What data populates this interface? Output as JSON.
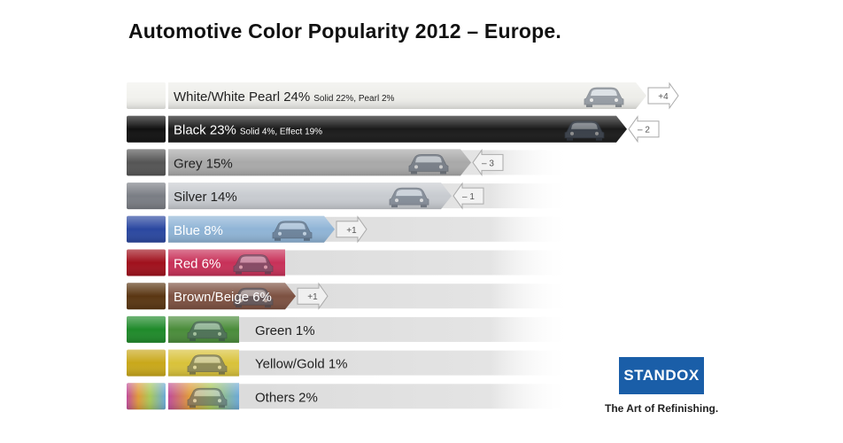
{
  "chart_data": {
    "type": "bar",
    "title": "Automotive Color Popularity 2012 – Europe.",
    "unit": "%",
    "series": [
      {
        "label": "White/White Pearl 24%",
        "detail": "Solid 22%, Pearl 2%",
        "value": 24,
        "change": "+4",
        "color": "#eeeeea",
        "swatch": "#f2f2ee",
        "text_color": "#222222"
      },
      {
        "label": "Black 23%",
        "detail": "Solid 4%, Effect 19%",
        "value": 23,
        "change": "– 2",
        "color": "#1a1a1a",
        "swatch": "#111111",
        "text_color": "#ffffff"
      },
      {
        "label": "Grey 15%",
        "detail": "",
        "value": 15,
        "change": "– 3",
        "color": "#a9a9a9",
        "swatch": "#555555",
        "text_color": "#222222"
      },
      {
        "label": "Silver 14%",
        "detail": "",
        "value": 14,
        "change": "– 1",
        "color": "#c8cbd0",
        "swatch": "#7a7d84",
        "text_color": "#222222"
      },
      {
        "label": "Blue 8%",
        "detail": "",
        "value": 8,
        "change": "+1",
        "color": "#8fb4d6",
        "swatch": "#2a47a0",
        "text_color": "#ffffff"
      },
      {
        "label": "Red 6%",
        "detail": "",
        "value": 6,
        "change": "",
        "color": "#c83058",
        "swatch": "#a0101c",
        "text_color": "#ffffff"
      },
      {
        "label": "Brown/Beige 6%",
        "detail": "",
        "value": 6,
        "change": "+1",
        "color": "#7d5141",
        "swatch": "#5a3612",
        "text_color": "#ffffff"
      },
      {
        "label": "Green 1%",
        "detail": "",
        "value": 1,
        "change": "",
        "color": "#4a8c3a",
        "swatch": "#1f8a2a",
        "text_color": "#222222"
      },
      {
        "label": "Yellow/Gold 1%",
        "detail": "",
        "value": 1,
        "change": "",
        "color": "#d9c23a",
        "swatch": "#c9a81a",
        "text_color": "#222222"
      },
      {
        "label": "Others 2%",
        "detail": "",
        "value": 2,
        "change": "",
        "color": "#a8c85a",
        "swatch": "#b04a9a",
        "text_color": "#222222"
      }
    ]
  },
  "brand": {
    "name": "STANDOX",
    "tagline": "The Art of Refinishing."
  }
}
